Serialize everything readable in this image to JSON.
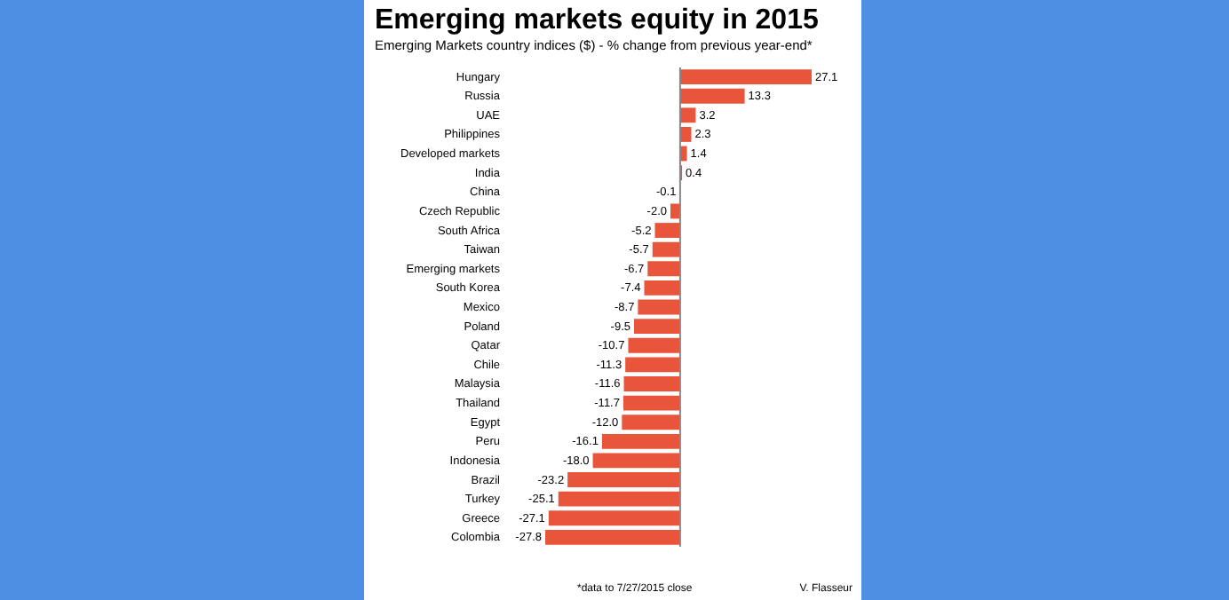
{
  "chart_data": {
    "type": "bar",
    "orientation": "horizontal",
    "title": "Emerging markets equity in 2015",
    "subtitle": "Emerging Markets country indices ($) - % change from previous year-end*",
    "categories": [
      "Hungary",
      "Russia",
      "UAE",
      "Philippines",
      "Developed markets",
      "India",
      "China",
      "Czech Republic",
      "South Africa",
      "Taiwan",
      "Emerging markets",
      "South Korea",
      "Mexico",
      "Poland",
      "Qatar",
      "Chile",
      "Malaysia",
      "Thailand",
      "Egypt",
      "Peru",
      "Indonesia",
      "Brazil",
      "Turkey",
      "Greece",
      "Colombia"
    ],
    "values": [
      27.1,
      13.3,
      3.2,
      2.3,
      1.4,
      0.4,
      -0.1,
      -2.0,
      -5.2,
      -5.7,
      -6.7,
      -7.4,
      -8.7,
      -9.5,
      -10.7,
      -11.3,
      -11.6,
      -11.7,
      -12.0,
      -16.1,
      -18.0,
      -23.2,
      -25.1,
      -27.1,
      -27.8
    ],
    "value_labels": [
      "27.1",
      "13.3",
      "3.2",
      "2.3",
      "1.4",
      "0.4",
      "-0.1",
      "-2.0",
      "-5.2",
      "-5.7",
      "-6.7",
      "-7.4",
      "-8.7",
      "-9.5",
      "-10.7",
      "-11.3",
      "-11.6",
      "-11.7",
      "-12.0",
      "-16.1",
      "-18.0",
      "-23.2",
      "-25.1",
      "-27.1",
      "-27.8"
    ],
    "color": "#e8553b",
    "ref_lines": [
      {
        "axis": "x",
        "value": 0,
        "color": "#888888"
      }
    ],
    "annotations": [
      "*data to 7/27/2015 close",
      "V. Flasseur"
    ]
  }
}
